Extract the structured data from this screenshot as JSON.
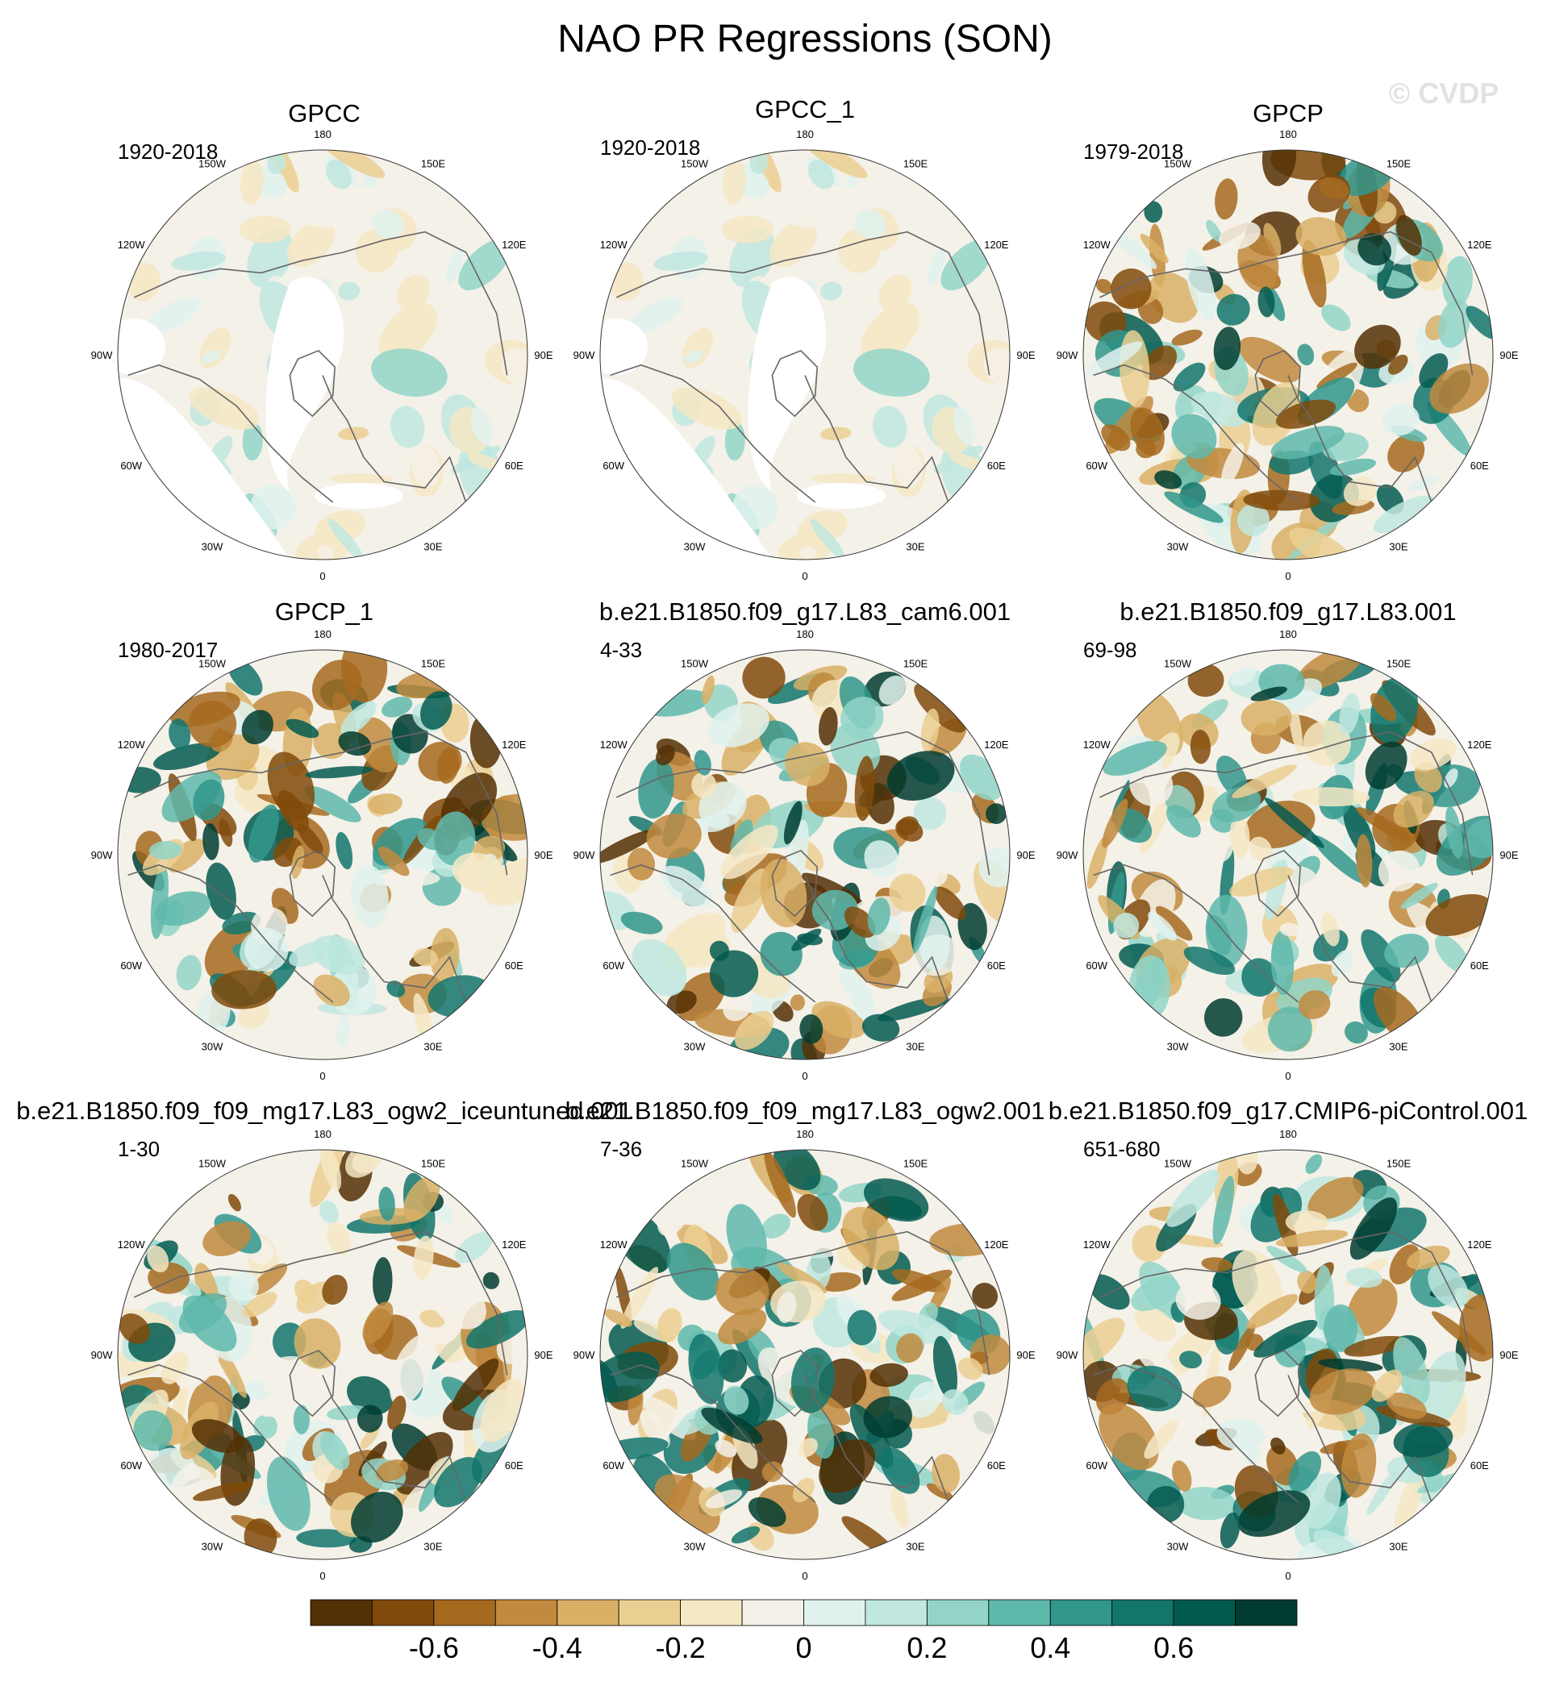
{
  "title": "NAO PR Regressions (SON)",
  "watermark": "© CVDP",
  "chart_data": {
    "type": "polar-stereographic contour maps",
    "variable": "PR regression onto NAO",
    "season": "SON",
    "lon_labels": [
      "180",
      "150E",
      "120E",
      "90E",
      "60E",
      "30E",
      "0",
      "30W",
      "60W",
      "90W",
      "120W",
      "150W"
    ],
    "panels": [
      {
        "name": "GPCC",
        "period": "1920-2018",
        "land_only": true,
        "seed": 11
      },
      {
        "name": "GPCC_1",
        "period": "1920-2018",
        "land_only": true,
        "seed": 11
      },
      {
        "name": "GPCP",
        "period": "1979-2018",
        "land_only": false,
        "seed": 23
      },
      {
        "name": "GPCP_1",
        "period": "1980-2017",
        "land_only": false,
        "seed": 24
      },
      {
        "name": "b.e21.B1850.f09_g17.L83_cam6.001",
        "period": "4-33",
        "land_only": false,
        "seed": 37
      },
      {
        "name": "b.e21.B1850.f09_g17.L83.001",
        "period": "69-98",
        "land_only": false,
        "seed": 41
      },
      {
        "name": "b.e21.B1850.f09_f09_mg17.L83_ogw2_iceuntuned.001",
        "period": "1-30",
        "land_only": false,
        "seed": 53
      },
      {
        "name": "b.e21.B1850.f09_f09_mg17.L83_ogw2.001",
        "period": "7-36",
        "land_only": false,
        "seed": 61
      },
      {
        "name": "b.e21.B1850.f09_g17.CMIP6-piControl.001",
        "period": "651-680",
        "land_only": false,
        "seed": 67
      }
    ],
    "colorbar": {
      "levels": [
        -0.8,
        -0.7,
        -0.6,
        -0.5,
        -0.4,
        -0.3,
        -0.2,
        -0.1,
        0,
        0.1,
        0.2,
        0.3,
        0.4,
        0.5,
        0.6,
        0.7,
        0.8
      ],
      "tick_labels": [
        "-0.6",
        "-0.4",
        "-0.2",
        "0",
        "0.2",
        "0.4",
        "0.6"
      ],
      "tick_values": [
        -0.6,
        -0.4,
        -0.2,
        0,
        0.2,
        0.4,
        0.6
      ],
      "colors": [
        "#543005",
        "#804a0a",
        "#a66a1f",
        "#c18a3e",
        "#d9b066",
        "#ebcf92",
        "#f5e8c4",
        "#f4f1e8",
        "#e1f2ee",
        "#c0e8df",
        "#92d5c8",
        "#5fb9ab",
        "#31968c",
        "#12766c",
        "#035b50",
        "#003c30"
      ]
    }
  }
}
